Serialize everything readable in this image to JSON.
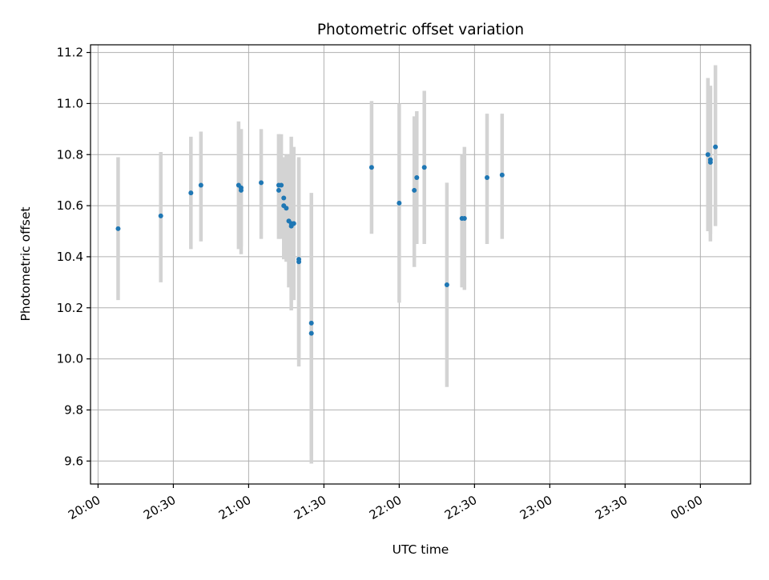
{
  "chart_data": {
    "type": "scatter",
    "title": "Photometric offset variation",
    "xlabel": "UTC time",
    "ylabel": "Photometric offset",
    "x_axis_type": "time",
    "xlim": [
      "19:57",
      "00:20+1"
    ],
    "ylim": [
      9.51,
      11.23
    ],
    "xticks": [
      "20:00",
      "20:30",
      "21:00",
      "21:30",
      "22:00",
      "22:30",
      "23:00",
      "23:30",
      "00:00"
    ],
    "yticks": [
      9.6,
      9.8,
      10.0,
      10.2,
      10.4,
      10.6,
      10.8,
      11.0,
      11.2
    ],
    "grid": true,
    "legend": "none",
    "colors": {
      "points": "#1f77b4",
      "errorbars": "#d3d3d3",
      "grid": "#b0b0b0"
    },
    "series": [
      {
        "points": [
          {
            "x": "20:08",
            "y": 10.51,
            "ylow": 10.23,
            "yhigh": 10.79
          },
          {
            "x": "20:25",
            "y": 10.56,
            "ylow": 10.3,
            "yhigh": 10.81
          },
          {
            "x": "20:37",
            "y": 10.65,
            "ylow": 10.43,
            "yhigh": 10.87
          },
          {
            "x": "20:41",
            "y": 10.68,
            "ylow": 10.46,
            "yhigh": 10.89
          },
          {
            "x": "20:56",
            "y": 10.68,
            "ylow": 10.43,
            "yhigh": 10.93
          },
          {
            "x": "20:57",
            "y": 10.66,
            "ylow": 10.41,
            "yhigh": 10.9
          },
          {
            "x": "20:57",
            "y": 10.67,
            "ylow": 10.44,
            "yhigh": 10.9
          },
          {
            "x": "21:05",
            "y": 10.69,
            "ylow": 10.47,
            "yhigh": 10.9
          },
          {
            "x": "21:12",
            "y": 10.66,
            "ylow": 10.47,
            "yhigh": 10.88
          },
          {
            "x": "21:12",
            "y": 10.68,
            "ylow": 10.47,
            "yhigh": 10.88
          },
          {
            "x": "21:13",
            "y": 10.68,
            "ylow": 10.47,
            "yhigh": 10.88
          },
          {
            "x": "21:14",
            "y": 10.63,
            "ylow": 10.5,
            "yhigh": 10.76
          },
          {
            "x": "21:14",
            "y": 10.6,
            "ylow": 10.39,
            "yhigh": 10.79
          },
          {
            "x": "21:15",
            "y": 10.59,
            "ylow": 10.38,
            "yhigh": 10.8
          },
          {
            "x": "21:16",
            "y": 10.54,
            "ylow": 10.28,
            "yhigh": 10.8
          },
          {
            "x": "21:17",
            "y": 10.52,
            "ylow": 10.23,
            "yhigh": 10.8
          },
          {
            "x": "21:17",
            "y": 10.53,
            "ylow": 10.19,
            "yhigh": 10.87
          },
          {
            "x": "21:18",
            "y": 10.53,
            "ylow": 10.23,
            "yhigh": 10.83
          },
          {
            "x": "21:20",
            "y": 10.38,
            "ylow": 9.97,
            "yhigh": 10.79
          },
          {
            "x": "21:20",
            "y": 10.39,
            "ylow": 10.0,
            "yhigh": 10.78
          },
          {
            "x": "21:25",
            "y": 10.14,
            "ylow": 9.62,
            "yhigh": 10.65
          },
          {
            "x": "21:25",
            "y": 10.1,
            "ylow": 9.59,
            "yhigh": 10.6
          },
          {
            "x": "21:49",
            "y": 10.75,
            "ylow": 10.49,
            "yhigh": 11.01
          },
          {
            "x": "22:00",
            "y": 10.61,
            "ylow": 10.22,
            "yhigh": 11.0
          },
          {
            "x": "22:06",
            "y": 10.66,
            "ylow": 10.36,
            "yhigh": 10.95
          },
          {
            "x": "22:07",
            "y": 10.71,
            "ylow": 10.45,
            "yhigh": 10.97
          },
          {
            "x": "22:10",
            "y": 10.75,
            "ylow": 10.45,
            "yhigh": 11.05
          },
          {
            "x": "22:19",
            "y": 10.29,
            "ylow": 9.89,
            "yhigh": 10.69
          },
          {
            "x": "22:25",
            "y": 10.55,
            "ylow": 10.28,
            "yhigh": 10.8
          },
          {
            "x": "22:26",
            "y": 10.55,
            "ylow": 10.27,
            "yhigh": 10.83
          },
          {
            "x": "22:35",
            "y": 10.71,
            "ylow": 10.45,
            "yhigh": 10.96
          },
          {
            "x": "22:41",
            "y": 10.72,
            "ylow": 10.47,
            "yhigh": 10.96
          },
          {
            "x": "00:03+1",
            "y": 10.8,
            "ylow": 10.5,
            "yhigh": 11.1
          },
          {
            "x": "00:04+1",
            "y": 10.77,
            "ylow": 10.46,
            "yhigh": 11.07
          },
          {
            "x": "00:04+1",
            "y": 10.78,
            "ylow": 10.49,
            "yhigh": 11.06
          },
          {
            "x": "00:06+1",
            "y": 10.83,
            "ylow": 10.52,
            "yhigh": 11.15
          }
        ]
      }
    ]
  }
}
